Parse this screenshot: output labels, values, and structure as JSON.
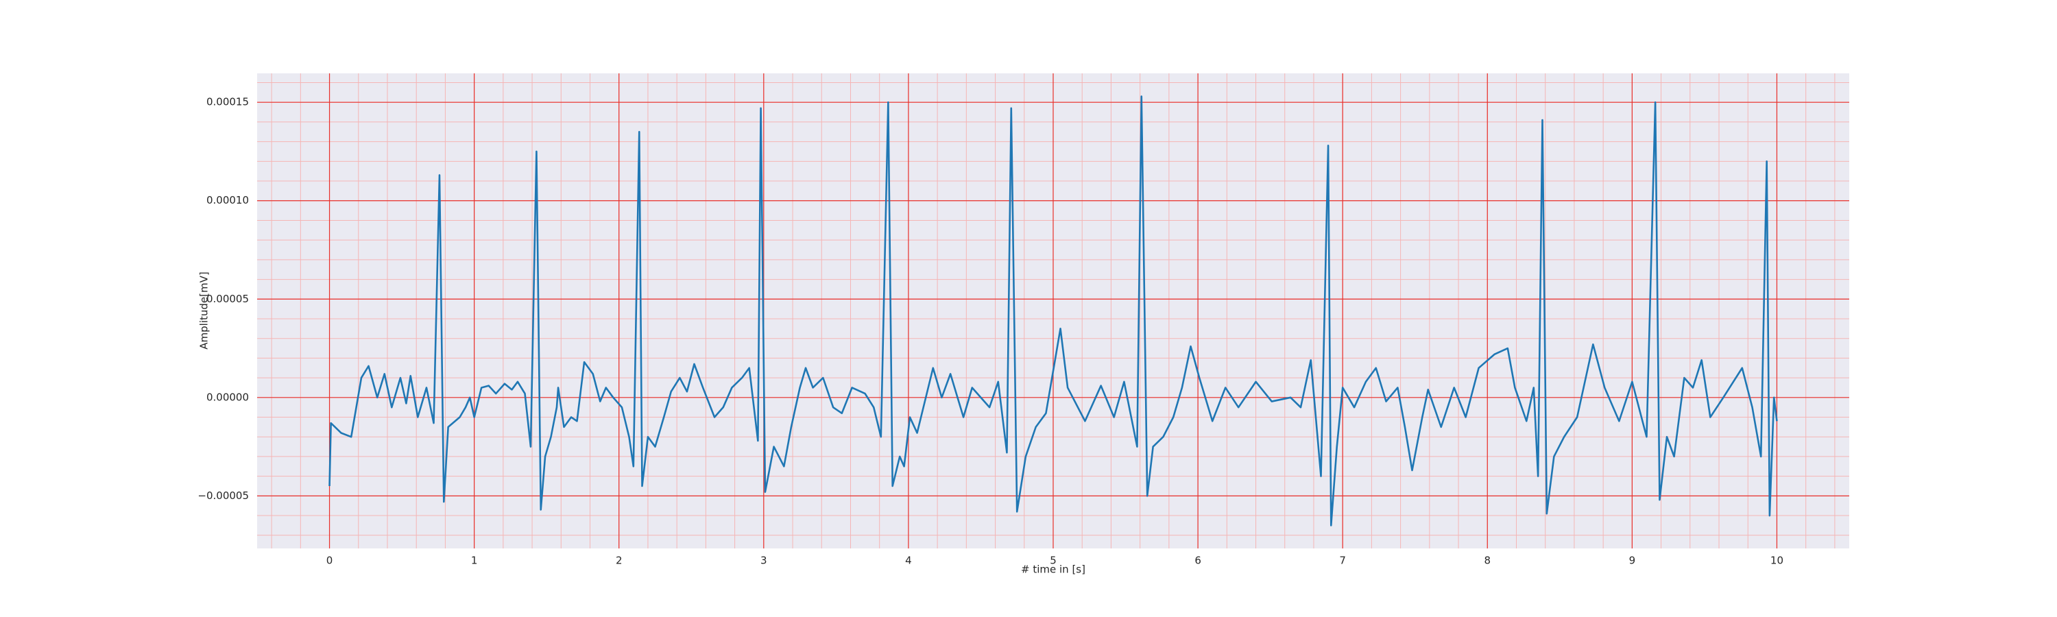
{
  "chart_data": {
    "type": "line",
    "xlabel": "# time in [s]",
    "ylabel": "Amplitude[mV]",
    "color": "#1f77b4",
    "grid": true,
    "xlim": [
      -0.5,
      10.5
    ],
    "ylim": [
      -7.67e-05,
      0.0001647
    ],
    "xticks": [
      0,
      1,
      2,
      3,
      4,
      5,
      6,
      7,
      8,
      9,
      10
    ],
    "yticks": [
      {
        "value": -5e-05,
        "label": "−0.00005"
      },
      {
        "value": 0,
        "label": "0.00000"
      },
      {
        "value": 5e-05,
        "label": "0.00005"
      },
      {
        "value": 0.0001,
        "label": "0.00010"
      },
      {
        "value": 0.00015,
        "label": "0.00015"
      }
    ],
    "xminorticks": [
      -0.4,
      -0.2,
      0,
      0.2,
      0.4,
      0.6,
      0.8,
      1,
      1.2,
      1.4,
      1.6,
      1.8,
      2,
      2.2,
      2.4,
      2.6,
      2.8,
      3,
      3.2,
      3.4,
      3.6,
      3.8,
      4,
      4.2,
      4.4,
      4.6,
      4.8,
      5,
      5.2,
      5.4,
      5.6,
      5.8,
      6,
      6.2,
      6.4,
      6.6,
      6.8,
      7,
      7.2,
      7.4,
      7.6,
      7.8,
      8,
      8.2,
      8.4,
      8.6,
      8.8,
      9,
      9.2,
      9.4,
      9.6,
      9.8,
      10,
      10.2,
      10.4
    ],
    "yminorticks": [
      -7e-05,
      -6e-05,
      -5e-05,
      -4e-05,
      -3e-05,
      -2e-05,
      -1e-05,
      0,
      1e-05,
      2e-05,
      3e-05,
      4e-05,
      5e-05,
      6e-05,
      7e-05,
      8e-05,
      9e-05,
      0.0001,
      0.00011,
      0.00012,
      0.00013,
      0.00014,
      0.00015,
      0.00016
    ],
    "x": [
      0,
      0.01,
      0.08,
      0.15,
      0.22,
      0.27,
      0.33,
      0.38,
      0.43,
      0.49,
      0.53,
      0.56,
      0.61,
      0.67,
      0.72,
      0.76,
      0.79,
      0.82,
      0.9,
      0.94,
      0.97,
      1.0,
      1.05,
      1.1,
      1.15,
      1.21,
      1.26,
      1.3,
      1.35,
      1.39,
      1.43,
      1.46,
      1.49,
      1.53,
      1.57,
      1.58,
      1.62,
      1.67,
      1.71,
      1.76,
      1.82,
      1.87,
      1.91,
      1.96,
      2.02,
      2.07,
      2.1,
      2.14,
      2.16,
      2.2,
      2.25,
      2.31,
      2.36,
      2.42,
      2.47,
      2.52,
      2.58,
      2.66,
      2.72,
      2.78,
      2.85,
      2.9,
      2.96,
      2.98,
      3.01,
      3.07,
      3.14,
      3.19,
      3.25,
      3.29,
      3.34,
      3.41,
      3.48,
      3.54,
      3.61,
      3.7,
      3.76,
      3.81,
      3.86,
      3.89,
      3.94,
      3.97,
      4.01,
      4.06,
      4.17,
      4.23,
      4.29,
      4.38,
      4.44,
      4.56,
      4.62,
      4.68,
      4.71,
      4.75,
      4.81,
      4.88,
      4.95,
      5.05,
      5.1,
      5.22,
      5.33,
      5.42,
      5.49,
      5.58,
      5.61,
      5.65,
      5.69,
      5.76,
      5.83,
      5.89,
      5.95,
      6.01,
      6.1,
      6.19,
      6.28,
      6.4,
      6.51,
      6.64,
      6.71,
      6.78,
      6.85,
      6.9,
      6.92,
      6.96,
      7.0,
      7.08,
      7.16,
      7.23,
      7.3,
      7.38,
      7.43,
      7.48,
      7.55,
      7.59,
      7.68,
      7.77,
      7.85,
      7.94,
      8.05,
      8.14,
      8.19,
      8.27,
      8.32,
      8.35,
      8.38,
      8.41,
      8.46,
      8.53,
      8.62,
      8.73,
      8.81,
      8.91,
      9.0,
      9.1,
      9.16,
      9.19,
      9.24,
      9.29,
      9.36,
      9.42,
      9.48,
      9.54,
      9.63,
      9.76,
      9.83,
      9.89,
      9.93,
      9.95,
      9.98,
      10.0
    ],
    "values": [
      -4.5e-05,
      -1.3e-05,
      -1.8e-05,
      -2e-05,
      1e-05,
      1.6e-05,
      0,
      1.2e-05,
      -5e-06,
      1e-05,
      -3e-06,
      1.1e-05,
      -1e-05,
      5e-06,
      -1.3e-05,
      0.000113,
      -5.3e-05,
      -1.5e-05,
      -1e-05,
      -5e-06,
      0,
      -1e-05,
      5e-06,
      6e-06,
      2e-06,
      7e-06,
      4e-06,
      8e-06,
      2e-06,
      -2.5e-05,
      0.000125,
      -5.7e-05,
      -3e-05,
      -2e-05,
      -5e-06,
      5e-06,
      -1.5e-05,
      -1e-05,
      -1.2e-05,
      1.8e-05,
      1.2e-05,
      -2e-06,
      5e-06,
      0,
      -5e-06,
      -2e-05,
      -3.5e-05,
      0.000135,
      -4.5e-05,
      -2e-05,
      -2.5e-05,
      -1e-05,
      3e-06,
      1e-05,
      3e-06,
      1.7e-05,
      5e-06,
      -1e-05,
      -5e-06,
      5e-06,
      1e-05,
      1.5e-05,
      -2.2e-05,
      0.000147,
      -4.8e-05,
      -2.5e-05,
      -3.5e-05,
      -1.5e-05,
      5e-06,
      1.5e-05,
      5e-06,
      1e-05,
      -5e-06,
      -8e-06,
      5e-06,
      2e-06,
      -5e-06,
      -2e-05,
      0.00015,
      -4.5e-05,
      -3e-05,
      -3.5e-05,
      -1e-05,
      -1.8e-05,
      1.5e-05,
      0,
      1.2e-05,
      -1e-05,
      5e-06,
      -5e-06,
      8e-06,
      -2.8e-05,
      0.000147,
      -5.8e-05,
      -3e-05,
      -1.5e-05,
      -8e-06,
      3.5e-05,
      5e-06,
      -1.2e-05,
      6e-06,
      -1e-05,
      8e-06,
      -2.5e-05,
      0.000153,
      -5e-05,
      -2.5e-05,
      -2e-05,
      -1e-05,
      5e-06,
      2.6e-05,
      1e-05,
      -1.2e-05,
      5e-06,
      -5e-06,
      8e-06,
      -2e-06,
      0,
      -5e-06,
      1.9e-05,
      -4e-05,
      0.000128,
      -6.5e-05,
      -2.5e-05,
      5e-06,
      -5e-06,
      8e-06,
      1.5e-05,
      -2e-06,
      5e-06,
      -1.5e-05,
      -3.7e-05,
      -1e-05,
      4e-06,
      -1.5e-05,
      5e-06,
      -1e-05,
      1.5e-05,
      2.2e-05,
      2.5e-05,
      5e-06,
      -1.2e-05,
      5e-06,
      -4e-05,
      0.000141,
      -5.9e-05,
      -3e-05,
      -2e-05,
      -1e-05,
      2.7e-05,
      5e-06,
      -1.2e-05,
      8e-06,
      -2e-05,
      0.00015,
      -5.2e-05,
      -2e-05,
      -3e-05,
      1e-05,
      5e-06,
      1.9e-05,
      -1e-05,
      0,
      1.5e-05,
      -5e-06,
      -3e-05,
      0.00012,
      -6e-05,
      0,
      -1.2e-05
    ]
  }
}
